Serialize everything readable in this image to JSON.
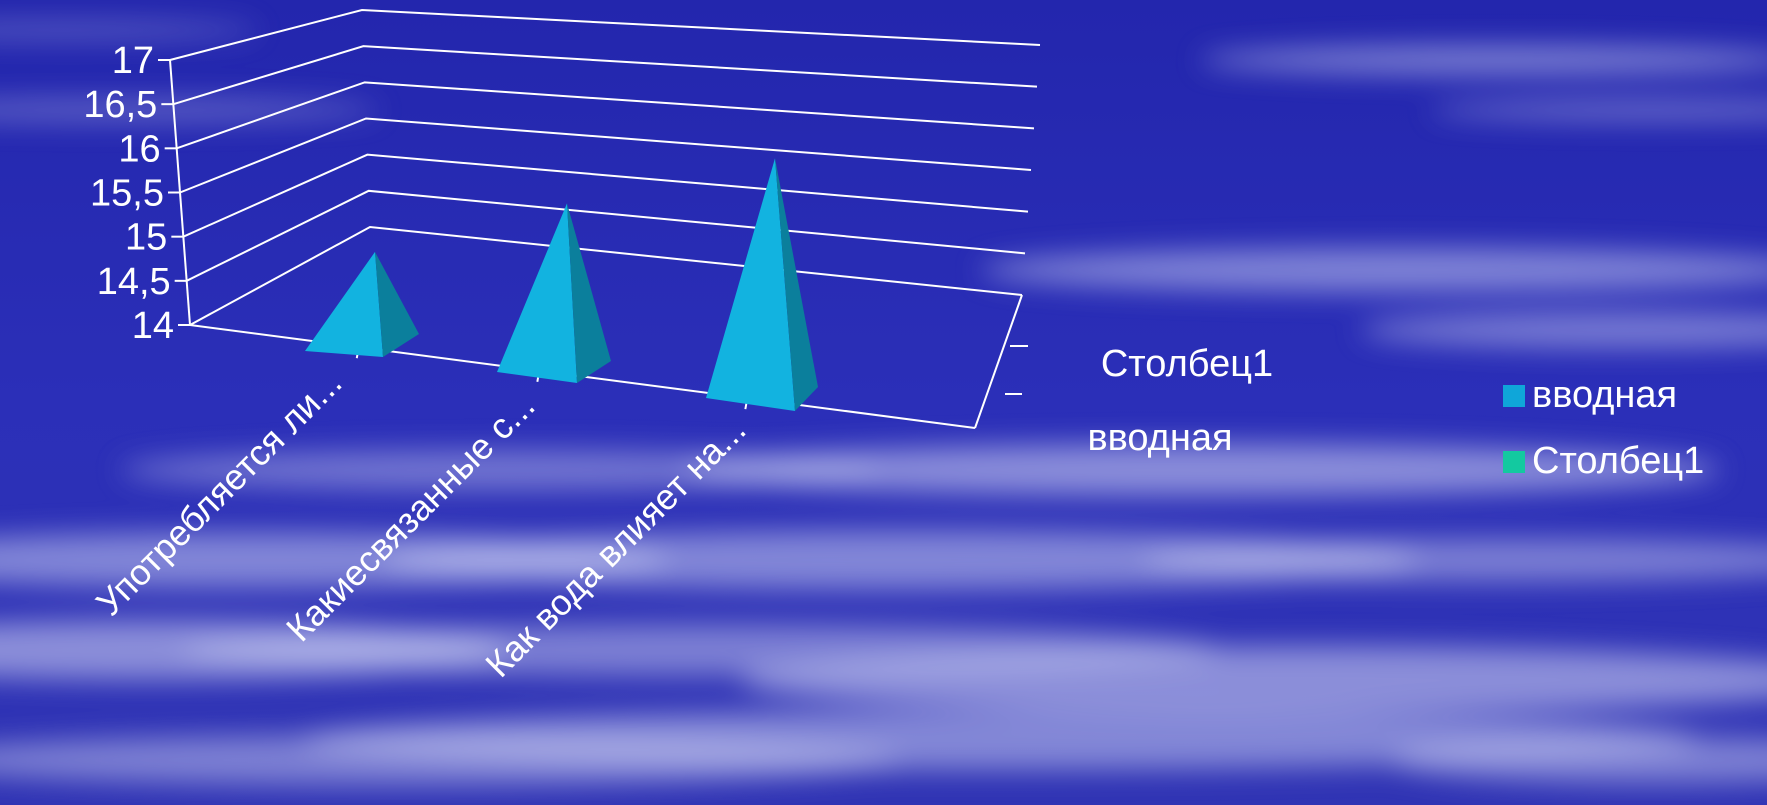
{
  "chart_data": {
    "type": "bar",
    "bar_shape": "pyramid",
    "three_d": true,
    "categories": [
      "Употребляется ли...",
      "Какиесвязанные с...",
      "Как вода влияет на..."
    ],
    "depth_categories": [
      "вводная",
      "Столбец1"
    ],
    "series": [
      {
        "name": "вводная",
        "values": [
          15.0,
          15.8,
          16.6
        ],
        "color": "#0fa6d9"
      },
      {
        "name": "Столбец1",
        "values": [
          null,
          null,
          null
        ],
        "color": "#13c9a0"
      }
    ],
    "y_ticks": [
      "17",
      "16,5",
      "16",
      "15,5",
      "15",
      "14,5",
      "14"
    ],
    "ylim": [
      14,
      17
    ],
    "grid": true,
    "legend_position": "right"
  },
  "colors": {
    "background": "#2a2cb4",
    "cloud": "#c9ccf2",
    "axis_text": "#ffffff",
    "grid_line": "#ffffff"
  }
}
